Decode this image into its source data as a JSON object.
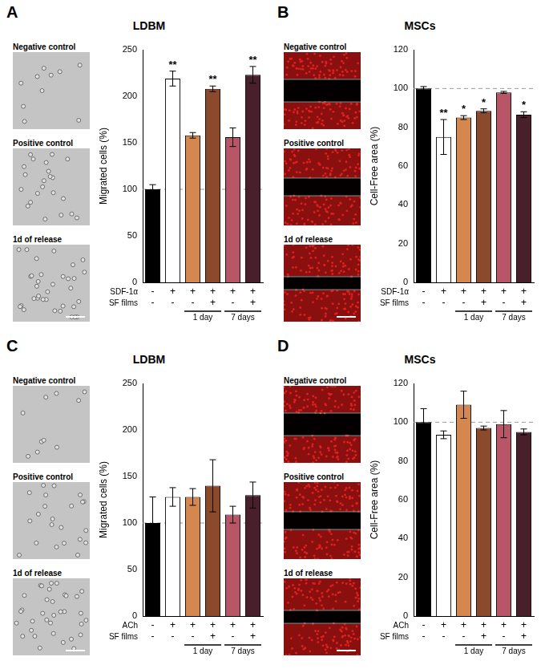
{
  "panels": [
    {
      "letter": "A",
      "title": "LDBM",
      "image_labels": [
        "Negative control",
        "Positive control",
        "1d of release"
      ]
    },
    {
      "letter": "B",
      "title": "MSCs",
      "image_labels": [
        "Negative control",
        "Positive control",
        "1d of release"
      ]
    },
    {
      "letter": "C",
      "title": "LDBM",
      "image_labels": [
        "Negative control",
        "Positive control",
        "1d of release"
      ]
    },
    {
      "letter": "D",
      "title": "MSCs",
      "image_labels": [
        "Negative control",
        "Positive control",
        "1d of release"
      ]
    }
  ],
  "chart_data": [
    {
      "type": "bar",
      "ylabel": "Migrated cells (%)",
      "ylim": [
        0,
        250
      ],
      "yticks": [
        0,
        50,
        100,
        150,
        200,
        250
      ],
      "grid": false,
      "condition_rows": [
        {
          "label": "SDF-1α",
          "marks": [
            "-",
            "+",
            "+",
            "+",
            "+",
            "+"
          ]
        },
        {
          "label": "SF films",
          "marks": [
            "-",
            "-",
            "-",
            "+",
            "-",
            "+"
          ]
        }
      ],
      "groups": [
        null,
        null,
        "1 day",
        "1 day",
        "7 days",
        "7 days"
      ],
      "values": [
        100,
        219,
        158,
        208,
        156,
        223
      ],
      "errors": [
        5,
        8,
        3,
        3,
        10,
        9
      ],
      "significance": [
        null,
        "**",
        null,
        "**",
        null,
        "**"
      ],
      "reference_line": 100,
      "colors": [
        "#000000",
        "#ffffff",
        "#d4874f",
        "#8b4a2b",
        "#b85566",
        "#4a1f2c"
      ]
    },
    {
      "type": "bar",
      "ylabel": "Cell-Free area (%)",
      "ylim": [
        0,
        120
      ],
      "yticks": [
        0,
        20,
        40,
        60,
        80,
        100,
        120
      ],
      "grid": false,
      "condition_rows": [
        {
          "label": "SDF-1α",
          "marks": [
            "-",
            "+",
            "+",
            "+",
            "+",
            "+"
          ]
        },
        {
          "label": "SF films",
          "marks": [
            "-",
            "-",
            "-",
            "+",
            "-",
            "+"
          ]
        }
      ],
      "groups": [
        null,
        null,
        "1 day",
        "1 day",
        "7 days",
        "7 days"
      ],
      "values": [
        100,
        75,
        85,
        88.5,
        98,
        86.5
      ],
      "errors": [
        1,
        9,
        1,
        1,
        0.5,
        1.5
      ],
      "significance": [
        null,
        "**",
        "*",
        "*",
        null,
        "*"
      ],
      "reference_line": 100,
      "colors": [
        "#000000",
        "#ffffff",
        "#d4874f",
        "#8b4a2b",
        "#b85566",
        "#4a1f2c"
      ]
    },
    {
      "type": "bar",
      "ylabel": "Migrated cells (%)",
      "ylim": [
        0,
        250
      ],
      "yticks": [
        0,
        50,
        100,
        150,
        200,
        250
      ],
      "grid": false,
      "condition_rows": [
        {
          "label": "ACh",
          "marks": [
            "-",
            "+",
            "+",
            "+",
            "+",
            "+"
          ]
        },
        {
          "label": "SF films",
          "marks": [
            "-",
            "-",
            "-",
            "+",
            "-",
            "+"
          ]
        }
      ],
      "groups": [
        null,
        null,
        "1 day",
        "1 day",
        "7 days",
        "7 days"
      ],
      "values": [
        100,
        128,
        128,
        140,
        109,
        130
      ],
      "errors": [
        28,
        10,
        9,
        28,
        9,
        14
      ],
      "significance": [
        null,
        null,
        null,
        null,
        null,
        null
      ],
      "reference_line": 100,
      "colors": [
        "#000000",
        "#ffffff",
        "#d4874f",
        "#8b4a2b",
        "#b85566",
        "#4a1f2c"
      ]
    },
    {
      "type": "bar",
      "ylabel": "Cell-Free area (%)",
      "ylim": [
        0,
        120
      ],
      "yticks": [
        0,
        20,
        40,
        60,
        80,
        100,
        120
      ],
      "grid": false,
      "condition_rows": [
        {
          "label": "ACh",
          "marks": [
            "-",
            "+",
            "+",
            "+",
            "+",
            "+"
          ]
        },
        {
          "label": "SF films",
          "marks": [
            "-",
            "-",
            "-",
            "+",
            "-",
            "+"
          ]
        }
      ],
      "groups": [
        null,
        null,
        "1 day",
        "1 day",
        "7 days",
        "7 days"
      ],
      "values": [
        100,
        93.5,
        109,
        97,
        99,
        95
      ],
      "errors": [
        7,
        2,
        7,
        1,
        7,
        1.5
      ],
      "significance": [
        null,
        null,
        null,
        null,
        null,
        null
      ],
      "reference_line": 100,
      "colors": [
        "#000000",
        "#ffffff",
        "#d4874f",
        "#8b4a2b",
        "#b85566",
        "#4a1f2c"
      ]
    }
  ]
}
